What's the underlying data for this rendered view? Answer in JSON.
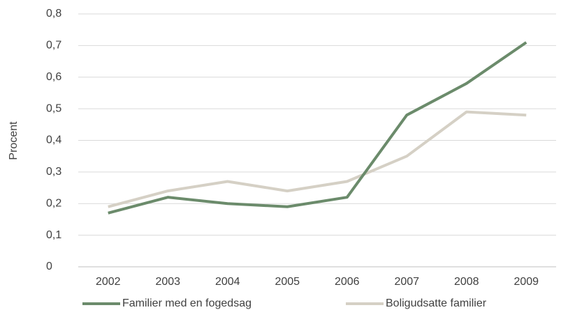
{
  "chart_data": {
    "type": "line",
    "y_label": "Procent",
    "categories": [
      "2002",
      "2003",
      "2004",
      "2005",
      "2006",
      "2007",
      "2008",
      "2009"
    ],
    "series": [
      {
        "name": "Familier med en fogedsag",
        "color": "#6b8b6b",
        "values": [
          0.17,
          0.22,
          0.2,
          0.19,
          0.22,
          0.48,
          0.58,
          0.71
        ]
      },
      {
        "name": "Boligudsatte familier",
        "color": "#d5d0c5",
        "values": [
          0.19,
          0.24,
          0.27,
          0.24,
          0.27,
          0.35,
          0.49,
          0.48
        ]
      }
    ],
    "ylim": [
      0,
      0.8
    ],
    "yticks": [
      0,
      {
        "value": 0.1,
        "label": "0,1"
      },
      {
        "value": 0.2,
        "label": "0,2"
      },
      {
        "value": 0.3,
        "label": "0,3"
      },
      {
        "value": 0.4,
        "label": "0,4"
      },
      {
        "value": 0.5,
        "label": "0,5"
      },
      {
        "value": 0.6,
        "label": "0,6"
      },
      {
        "value": 0.7,
        "label": "0,7"
      },
      {
        "value": 0.8,
        "label": "0,8"
      }
    ],
    "grid": true,
    "legend": "bottom"
  }
}
